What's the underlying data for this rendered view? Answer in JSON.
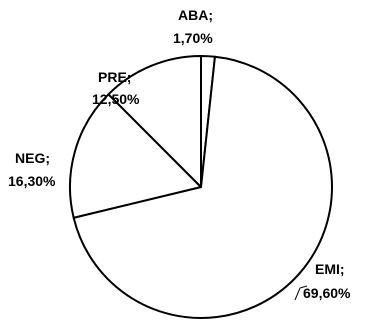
{
  "chart_data": {
    "type": "pie",
    "title": "",
    "slices": [
      {
        "label": "ABA",
        "display": "ABA;",
        "percent_label": "1,70%",
        "value": 1.7
      },
      {
        "label": "EMI",
        "display": "EMI;",
        "percent_label": "69,60%",
        "value": 69.6
      },
      {
        "label": "NEG",
        "display": "NEG;",
        "percent_label": "16,30%",
        "value": 16.3
      },
      {
        "label": "PRE",
        "display": "PRE;",
        "percent_label": "12,50%",
        "value": 12.5
      }
    ],
    "fill_color": "#ffffff",
    "stroke_color": "#000000",
    "legend": "none"
  }
}
